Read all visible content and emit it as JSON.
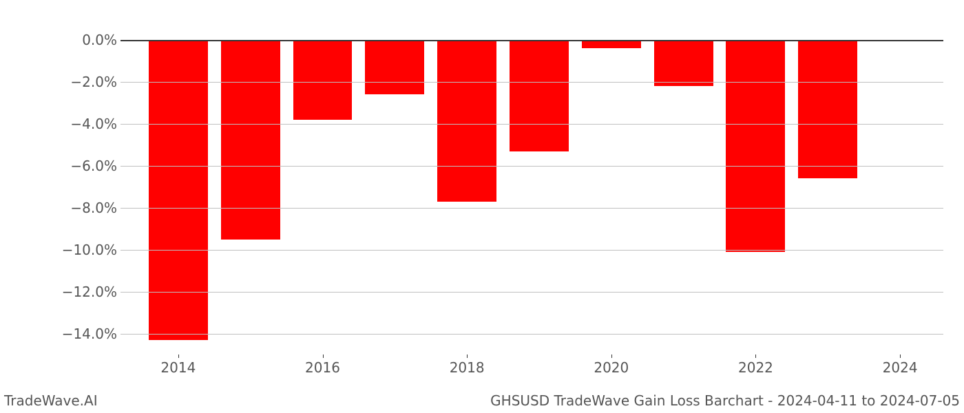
{
  "chart": {
    "type": "bar",
    "years": [
      2014,
      2015,
      2016,
      2017,
      2018,
      2019,
      2020,
      2021,
      2022,
      2023
    ],
    "values": [
      -14.3,
      -9.5,
      -3.8,
      -2.6,
      -7.7,
      -5.3,
      -0.4,
      -2.2,
      -10.1,
      -6.6
    ],
    "x_ticks": [
      2014,
      2016,
      2018,
      2020,
      2022,
      2024
    ],
    "x_range": [
      2013.2,
      2024.6
    ],
    "y_ticks": [
      0.0,
      -2.0,
      -4.0,
      -6.0,
      -8.0,
      -10.0,
      -12.0,
      -14.0
    ],
    "y_tick_labels": [
      "0.0%",
      "−2.0%",
      "−4.0%",
      "−6.0%",
      "−8.0%",
      "−10.0%",
      "−12.0%",
      "−14.0%"
    ],
    "y_range": [
      -15.0,
      0.6
    ],
    "bar_color": "#ff0000",
    "bar_width_years": 0.82,
    "grid_color": "#c0c0c0",
    "background_color": "#ffffff",
    "axis_label_color": "#555555",
    "axis_label_fontsize": 20
  },
  "footer": {
    "left": "TradeWave.AI",
    "right": "GHSUSD TradeWave Gain Loss Barchart - 2024-04-11 to 2024-07-05"
  }
}
